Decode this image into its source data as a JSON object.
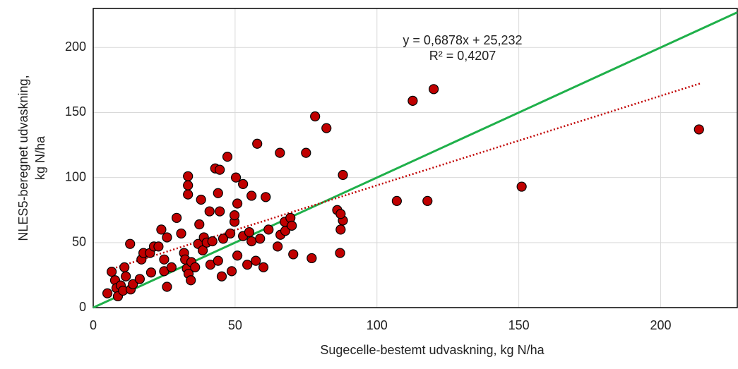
{
  "chart_data": {
    "type": "scatter",
    "x_label": "Sugecelle-bestemt udvaskning, kg N/ha",
    "y_label": [
      "NLES5-beregnet udvaskning,",
      "kg N/ha"
    ],
    "annotations": [
      "y = 0,6878x + 25,232",
      "R² = 0,4207"
    ],
    "x": [
      5,
      6.5,
      7.7,
      8.2,
      8.7,
      9.7,
      10.5,
      11,
      11.5,
      13,
      13.2,
      14,
      16.4,
      17,
      17.7,
      20,
      20.4,
      21.4,
      23,
      24,
      25,
      25,
      26,
      26,
      27.6,
      29.4,
      31,
      32,
      32.4,
      33,
      33.4,
      33.4,
      33.4,
      33.6,
      34.4,
      34.6,
      35.9,
      37,
      37.4,
      38,
      38.6,
      39,
      40,
      41,
      41.3,
      42,
      43,
      44,
      44,
      44.6,
      44.6,
      45.3,
      45.8,
      47.3,
      48.3,
      48.8,
      49.8,
      49.8,
      50.3,
      50.8,
      50.8,
      52.8,
      52.8,
      54.3,
      55,
      55.8,
      55.8,
      57.3,
      57.8,
      58.8,
      60,
      60.8,
      61.8,
      65,
      65.8,
      66,
      67.5,
      67.7,
      69.5,
      70,
      70.5,
      75,
      77,
      78.2,
      82.2,
      86,
      87,
      88,
      88,
      87.2,
      87.2,
      107,
      112.6,
      117.8,
      120,
      151,
      213.5
    ],
    "values": [
      11,
      27.6,
      21,
      15,
      8.7,
      17,
      13,
      31,
      24,
      49,
      14,
      18,
      22,
      37,
      42,
      42,
      27,
      47,
      47,
      60,
      37,
      28,
      16,
      54,
      31,
      69,
      57,
      42,
      37,
      30,
      101,
      94,
      87,
      26,
      21,
      35,
      31,
      49,
      64,
      83,
      44,
      54,
      50,
      74,
      33,
      51,
      107,
      36,
      88,
      106,
      74,
      24,
      53,
      116,
      57,
      28,
      66,
      71,
      100,
      80,
      40,
      95,
      55,
      33,
      58,
      51,
      86,
      36,
      126,
      53,
      31,
      85,
      60,
      47,
      119,
      56,
      66,
      59,
      69,
      63,
      41,
      119,
      38,
      147,
      138,
      75,
      42,
      102,
      67,
      72,
      60,
      82,
      159,
      82,
      168,
      93,
      137
    ],
    "color": "#c00000",
    "xlim": [
      0,
      227
    ],
    "ylim": [
      0,
      230
    ],
    "xticks": [
      0,
      50,
      100,
      150,
      200
    ],
    "yticks": [
      0,
      50,
      100,
      150,
      200
    ],
    "grid": true,
    "identity_line": {
      "color": "#1fb04a"
    },
    "trendline": {
      "slope": 0.6878,
      "intercept": 25.232,
      "x_range": [
        8,
        214
      ],
      "color": "#c00000"
    }
  }
}
